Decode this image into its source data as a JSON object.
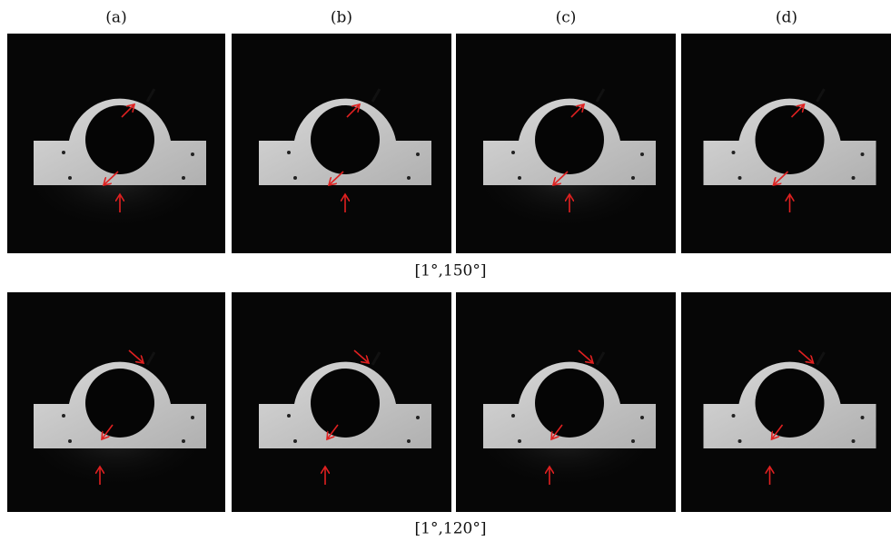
{
  "column_labels": [
    "(a)",
    "(b)",
    "(c)",
    "(d)"
  ],
  "rows": [
    {
      "caption": "[1°,150°]"
    },
    {
      "caption": "[1°,120°]"
    }
  ]
}
